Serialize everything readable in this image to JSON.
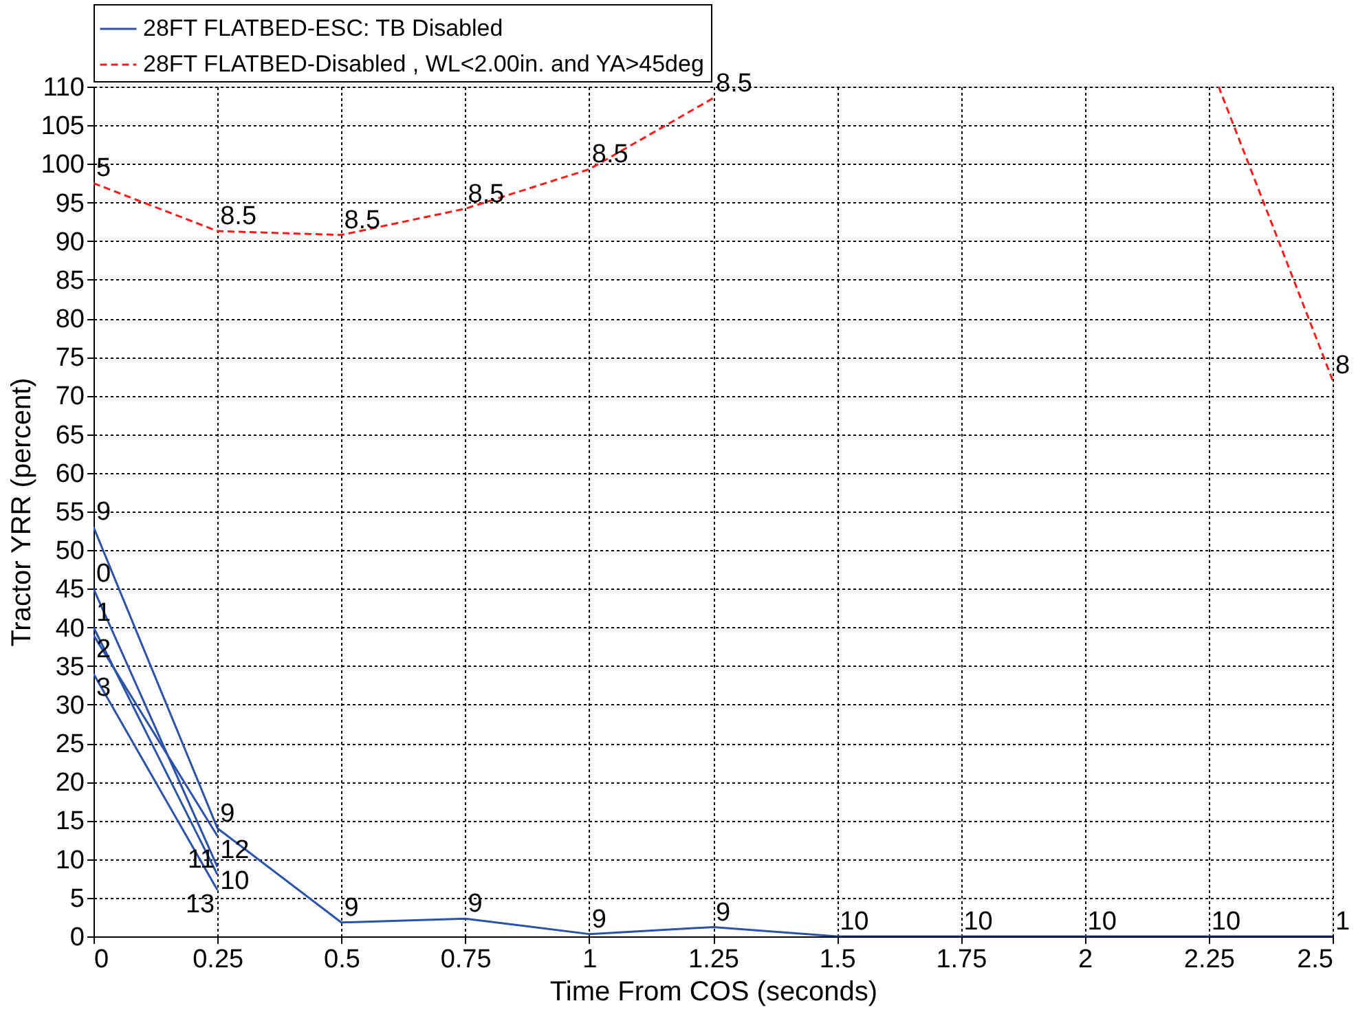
{
  "chart_data": {
    "type": "line",
    "xlabel": "Time From COS (seconds)",
    "ylabel": "Tractor YRR (percent)",
    "x": [
      0,
      0.25,
      0.5,
      0.75,
      1,
      1.25,
      1.5,
      1.75,
      2,
      2.25,
      2.5
    ],
    "series": [
      {
        "name": "28FT FLATBED-ESC: TB Disabled",
        "color": "#2a52a8",
        "line_style": "solid",
        "values": [
          53,
          14,
          1.8,
          2.3,
          0.3,
          1.2,
          0,
          0,
          0,
          0,
          0
        ]
      },
      {
        "color": "#2a52a8",
        "line_style": "solid",
        "values": [
          45,
          9,
          null,
          null,
          null,
          null,
          null,
          null,
          null,
          null,
          null
        ]
      },
      {
        "color": "#2a52a8",
        "line_style": "solid",
        "values": [
          40,
          8,
          null,
          null,
          null,
          null,
          null,
          null,
          null,
          null,
          null
        ]
      },
      {
        "color": "#2a52a8",
        "line_style": "solid",
        "values": [
          39,
          13,
          null,
          null,
          null,
          null,
          null,
          null,
          null,
          null,
          null
        ]
      },
      {
        "color": "#2a52a8",
        "line_style": "solid",
        "values": [
          34,
          6,
          null,
          null,
          null,
          null,
          null,
          null,
          null,
          null,
          null
        ]
      },
      {
        "name": "28FT FLATBED-Disabled , WL<2.00in. and YA>45deg",
        "color": "#ff1a1a",
        "line_style": "dashed",
        "x": [
          0,
          0.25,
          0.5,
          0.75,
          1,
          1.25,
          1.5,
          2.27,
          2.5
        ],
        "values": [
          97.5,
          91.3,
          90.8,
          94.2,
          99.3,
          108.5,
          null,
          110,
          72
        ]
      }
    ],
    "xlim": [
      0,
      2.5
    ],
    "ylim": [
      0,
      110
    ],
    "xticks": [
      0,
      0.25,
      0.5,
      0.75,
      1,
      1.25,
      1.5,
      1.75,
      2,
      2.25,
      2.5
    ],
    "yticks": [
      0,
      5,
      10,
      15,
      20,
      25,
      30,
      35,
      40,
      45,
      50,
      55,
      60,
      65,
      70,
      75,
      80,
      85,
      90,
      95,
      100,
      105,
      110
    ],
    "grid": true,
    "legend": "top",
    "marker": "none",
    "annotations": [
      {
        "text": "9",
        "x": 0,
        "y": 53
      },
      {
        "text": "0",
        "x": 0,
        "y": 45
      },
      {
        "text": "1",
        "x": 0,
        "y": 40
      },
      {
        "text": "2",
        "x": 0,
        "y": 39
      },
      {
        "text": "3",
        "x": 0,
        "y": 34
      },
      {
        "text": "9",
        "x": 0.25,
        "y": 14
      },
      {
        "text": "12",
        "x": 0.25,
        "y": 13
      },
      {
        "text": "10",
        "x": 0.25,
        "y": 9
      },
      {
        "text": "11",
        "x": 0.25,
        "y": 8
      },
      {
        "text": "13",
        "x": 0.25,
        "y": 6
      },
      {
        "text": "9",
        "x": 0.5,
        "y": 1.8
      },
      {
        "text": "9",
        "x": 0.75,
        "y": 2.3
      },
      {
        "text": "9",
        "x": 1,
        "y": 0.3
      },
      {
        "text": "9",
        "x": 1.25,
        "y": 1.2
      },
      {
        "text": "10",
        "x": 1.5,
        "y": 0
      },
      {
        "text": "10",
        "x": 1.75,
        "y": 0
      },
      {
        "text": "10",
        "x": 2,
        "y": 0
      },
      {
        "text": "10",
        "x": 2.25,
        "y": 0
      },
      {
        "text": "1",
        "x": 2.5,
        "y": 0
      },
      {
        "text": "5",
        "x": 0,
        "y": 97.5
      },
      {
        "text": "8.5",
        "x": 0.25,
        "y": 91.3
      },
      {
        "text": "8.5",
        "x": 0.5,
        "y": 90.8
      },
      {
        "text": "8.5",
        "x": 0.75,
        "y": 94.2
      },
      {
        "text": "8.5",
        "x": 1,
        "y": 99.3
      },
      {
        "text": "8.5",
        "x": 1.25,
        "y": 108.5
      },
      {
        "text": "8",
        "x": 2.5,
        "y": 72
      }
    ]
  }
}
